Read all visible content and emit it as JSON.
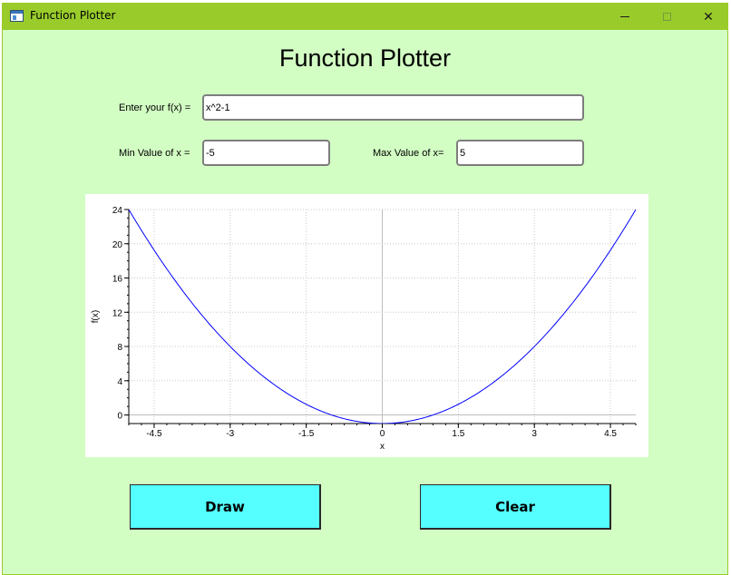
{
  "window": {
    "title": "Function Plotter",
    "title_bar_color": "#99cc2b",
    "background_color": "#d2fdc3",
    "controls": {
      "minimize_icon": "minimize-icon",
      "maximize_icon": "maximize-icon",
      "close_icon": "close-icon",
      "close_glyph": "✕"
    }
  },
  "heading": "Function Plotter",
  "form": {
    "function_label": "Enter your f(x) =",
    "function_value": "x^2-1",
    "min_label": "Min Value of x =",
    "min_value": "-5",
    "max_label": "Max Value of x=",
    "max_value": "5"
  },
  "chart_data": {
    "type": "line",
    "expression": "x^2-1",
    "xlabel": "x",
    "ylabel": "f(x)",
    "xlim": [
      -5,
      5
    ],
    "ylim": [
      -1,
      24
    ],
    "x_ticks": [
      -4.5,
      -3,
      -1.5,
      0,
      1.5,
      3,
      4.5
    ],
    "x_tick_labels": [
      "-4.5",
      "-3",
      "-1.5",
      "0",
      "1.5",
      "3",
      "4.5"
    ],
    "y_ticks": [
      0,
      4,
      8,
      12,
      16,
      20,
      24
    ],
    "y_tick_labels": [
      "0",
      "4",
      "8",
      "12",
      "16",
      "20",
      "24"
    ],
    "grid": true,
    "line_color": "#0000ff",
    "series": [
      {
        "x": [
          -5,
          -4.5,
          -4,
          -3.5,
          -3,
          -2.5,
          -2,
          -1.5,
          -1,
          -0.5,
          0,
          0.5,
          1,
          1.5,
          2,
          2.5,
          3,
          3.5,
          4,
          4.5,
          5
        ],
        "values": [
          24,
          19.25,
          15,
          11.25,
          8,
          5.25,
          3,
          1.25,
          0,
          -0.75,
          -1,
          -0.75,
          0,
          1.25,
          3,
          5.25,
          8,
          11.25,
          15,
          19.25,
          24
        ]
      }
    ]
  },
  "buttons": {
    "draw": "Draw",
    "clear": "Clear",
    "color": "#55ffff"
  }
}
